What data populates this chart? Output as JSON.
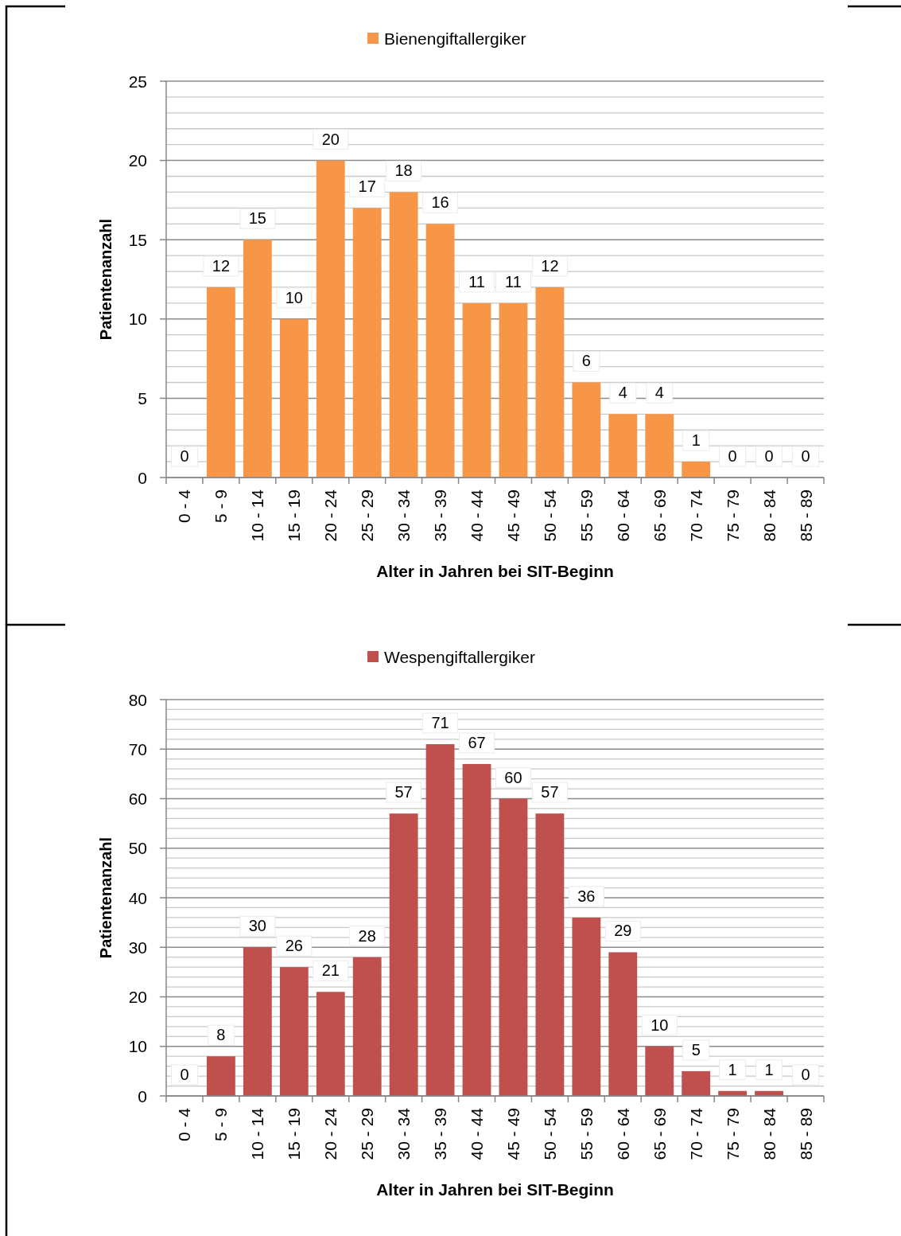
{
  "chart_data": [
    {
      "type": "bar",
      "categories": [
        "0 - 4",
        "5 - 9",
        "10 - 14",
        "15 - 19",
        "20 - 24",
        "25 - 29",
        "30 - 34",
        "35 - 39",
        "40 - 44",
        "45 - 49",
        "50 - 54",
        "55 - 59",
        "60 - 64",
        "65 - 69",
        "70 - 74",
        "75 - 79",
        "80 - 84",
        "85 - 89"
      ],
      "series": [
        {
          "name": "Bienengiftallergiker",
          "color": "#f79646",
          "values": [
            0,
            12,
            15,
            10,
            20,
            17,
            18,
            16,
            11,
            11,
            12,
            6,
            4,
            4,
            1,
            0,
            0,
            0
          ]
        }
      ],
      "xlabel": "Alter in Jahren bei SIT-Beginn",
      "ylabel": "Patientenanzahl",
      "ylim": [
        0,
        25
      ],
      "yticks": [
        0,
        {
          "value": 1,
          "label": null
        },
        {
          "value": 2,
          "label": null
        },
        {
          "value": 3,
          "label": null
        },
        {
          "value": 4,
          "label": null
        },
        5,
        {
          "value": 6,
          "label": null
        },
        {
          "value": 7,
          "label": null
        },
        {
          "value": 8,
          "label": null
        },
        {
          "value": 9,
          "label": null
        },
        10,
        {
          "value": 11,
          "label": null
        },
        {
          "value": 12,
          "label": null
        },
        {
          "value": 13,
          "label": null
        },
        {
          "value": 14,
          "label": null
        },
        15,
        {
          "value": 16,
          "label": null
        },
        {
          "value": 17,
          "label": null
        },
        {
          "value": 18,
          "label": null
        },
        {
          "value": 19,
          "label": null
        },
        20,
        {
          "value": 21,
          "label": null
        },
        {
          "value": 22,
          "label": null
        },
        {
          "value": 23,
          "label": null
        },
        {
          "value": 24,
          "label": null
        },
        25
      ],
      "grid": "y",
      "legend": "top",
      "data_labels": true
    },
    {
      "type": "bar",
      "categories": [
        "0 - 4",
        "5 - 9",
        "10 - 14",
        "15 - 19",
        "20 - 24",
        "25 - 29",
        "30 - 34",
        "35 - 39",
        "40 - 44",
        "45 - 49",
        "50 - 54",
        "55 - 59",
        "60 - 64",
        "65 - 69",
        "70 - 74",
        "75 - 79",
        "80 - 84",
        "85 - 89"
      ],
      "series": [
        {
          "name": "Wespengiftallergiker",
          "color": "#c0504d",
          "values": [
            0,
            8,
            30,
            26,
            21,
            28,
            57,
            71,
            67,
            60,
            57,
            36,
            29,
            10,
            5,
            1,
            1,
            0
          ]
        }
      ],
      "xlabel": "Alter in Jahren bei SIT-Beginn",
      "ylabel": "Patientenanzahl",
      "ylim": [
        0,
        80
      ],
      "yticks": [
        0,
        {
          "value": 2,
          "label": null
        },
        {
          "value": 4,
          "label": null
        },
        {
          "value": 6,
          "label": null
        },
        {
          "value": 8,
          "label": null
        },
        10,
        {
          "value": 12,
          "label": null
        },
        {
          "value": 14,
          "label": null
        },
        {
          "value": 16,
          "label": null
        },
        {
          "value": 18,
          "label": null
        },
        20,
        {
          "value": 22,
          "label": null
        },
        {
          "value": 24,
          "label": null
        },
        {
          "value": 26,
          "label": null
        },
        {
          "value": 28,
          "label": null
        },
        30,
        {
          "value": 32,
          "label": null
        },
        {
          "value": 34,
          "label": null
        },
        {
          "value": 36,
          "label": null
        },
        {
          "value": 38,
          "label": null
        },
        40,
        {
          "value": 42,
          "label": null
        },
        {
          "value": 44,
          "label": null
        },
        {
          "value": 46,
          "label": null
        },
        {
          "value": 48,
          "label": null
        },
        50,
        {
          "value": 52,
          "label": null
        },
        {
          "value": 54,
          "label": null
        },
        {
          "value": 56,
          "label": null
        },
        {
          "value": 58,
          "label": null
        },
        60,
        {
          "value": 62,
          "label": null
        },
        {
          "value": 64,
          "label": null
        },
        {
          "value": 66,
          "label": null
        },
        {
          "value": 68,
          "label": null
        },
        70,
        {
          "value": 72,
          "label": null
        },
        {
          "value": 74,
          "label": null
        },
        {
          "value": 76,
          "label": null
        },
        {
          "value": 78,
          "label": null
        },
        80
      ],
      "grid": "y",
      "legend": "top",
      "data_labels": true
    }
  ]
}
